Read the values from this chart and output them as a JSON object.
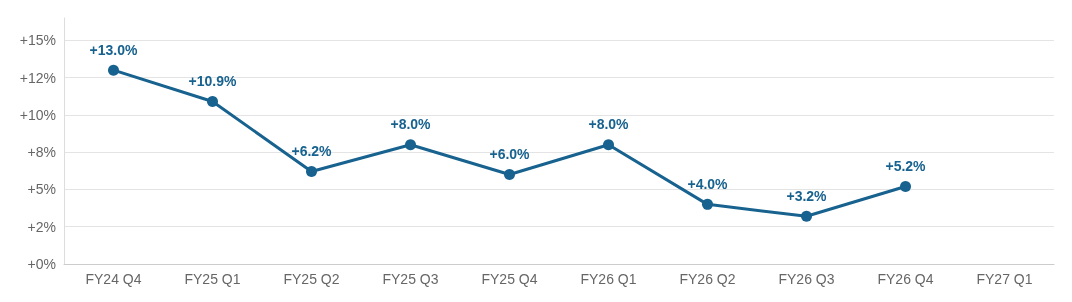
{
  "chart_data": {
    "type": "line",
    "categories": [
      "FY24 Q4",
      "FY25 Q1",
      "FY25 Q2",
      "FY25 Q3",
      "FY25 Q4",
      "FY26 Q1",
      "FY26 Q2",
      "FY26 Q3",
      "FY26 Q4",
      "FY27 Q1"
    ],
    "series": [
      {
        "color": "#17628f",
        "values": [
          13.0,
          10.9,
          6.2,
          8.0,
          6.0,
          8.0,
          4.0,
          3.2,
          5.2,
          null
        ],
        "value_labels": [
          "+13.0%",
          "+10.9%",
          "+6.2%",
          "+8.0%",
          "+6.0%",
          "+8.0%",
          "+4.0%",
          "+3.2%",
          "+5.2%",
          null
        ]
      }
    ],
    "ylim": [
      0,
      16.5
    ],
    "yticks": [
      {
        "value": 0,
        "label": "+0%"
      },
      {
        "value": 2.5,
        "label": "+2%"
      },
      {
        "value": 5,
        "label": "+5%"
      },
      {
        "value": 7.5,
        "label": "+8%"
      },
      {
        "value": 10,
        "label": "+10%"
      },
      {
        "value": 12.5,
        "label": "+12%"
      },
      {
        "value": 15,
        "label": "+15%"
      }
    ],
    "grid": "y",
    "marker": "circle",
    "line_style": "solid"
  }
}
